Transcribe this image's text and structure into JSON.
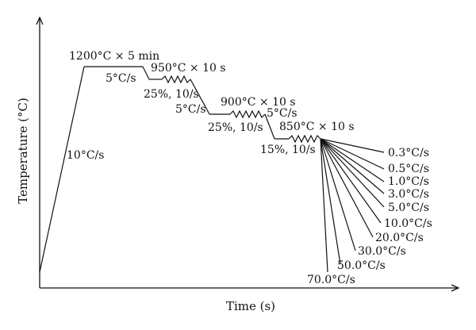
{
  "axes": {
    "x_label": "Time (s)",
    "y_label": "Temperature (°C)"
  },
  "stages": {
    "heating_rate": "10°C/s",
    "soak": "1200°C × 5 min",
    "cool_1": "5°C/s",
    "deform_1_hold": "950°C × 10 s",
    "deform_1_strain": "25%, 10/s",
    "cool_2": "5°C/s",
    "deform_2_hold": "900°C × 10 s",
    "deform_2_strain": "25%, 10/s",
    "cool_3": "5°C/s",
    "deform_3_hold": "850°C × 10 s",
    "deform_3_strain": "15%, 10/s"
  },
  "cooling_rates": [
    "0.3°C/s",
    "0.5°C/s",
    "1.0°C/s",
    "3.0°C/s",
    "5.0°C/s",
    "10.0°C/s",
    "20.0°C/s",
    "30.0°C/s",
    "50.0°C/s",
    "70.0°C/s"
  ]
}
